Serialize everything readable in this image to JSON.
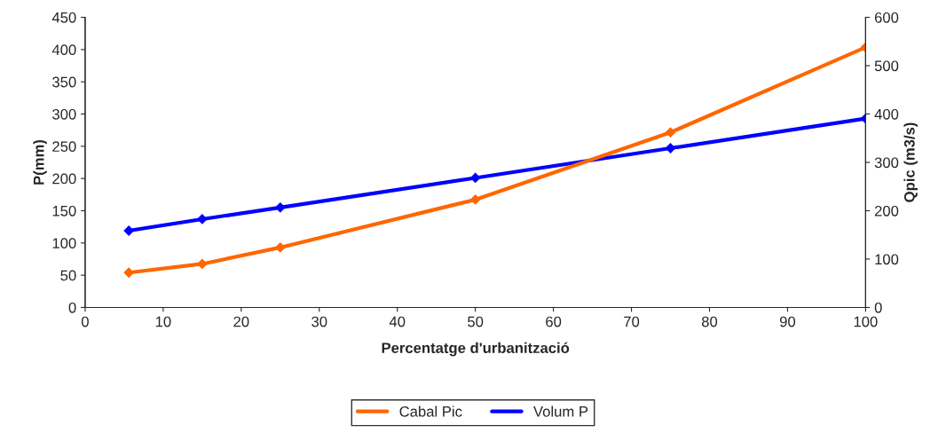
{
  "chart_data": {
    "type": "line",
    "xlabel": "Percentatge d'urbanització",
    "ylabel": "P(mm)",
    "y2label": "Qpic (m3/s)",
    "x": [
      5.6,
      15,
      25,
      50,
      75,
      100
    ],
    "series": [
      {
        "name": "Cabal Pic",
        "color": "#ff6600",
        "axis": "y2",
        "values": [
          72,
          90,
          124,
          223,
          362,
          538
        ]
      },
      {
        "name": "Volum P",
        "color": "#0000ff",
        "values": [
          119,
          137,
          155,
          201,
          247,
          293
        ]
      }
    ],
    "xlim": [
      0,
      100
    ],
    "xticks": [
      0,
      10,
      20,
      30,
      40,
      50,
      60,
      70,
      80,
      90,
      100
    ],
    "ylim": [
      0,
      450
    ],
    "yticks": [
      0,
      50,
      100,
      150,
      200,
      250,
      300,
      350,
      400,
      450
    ],
    "y2lim": [
      0,
      600
    ],
    "y2ticks": [
      0,
      100,
      200,
      300,
      400,
      500,
      600
    ],
    "marker": "diamond",
    "line_style": "solid",
    "legend": "bottom",
    "grid": false
  }
}
